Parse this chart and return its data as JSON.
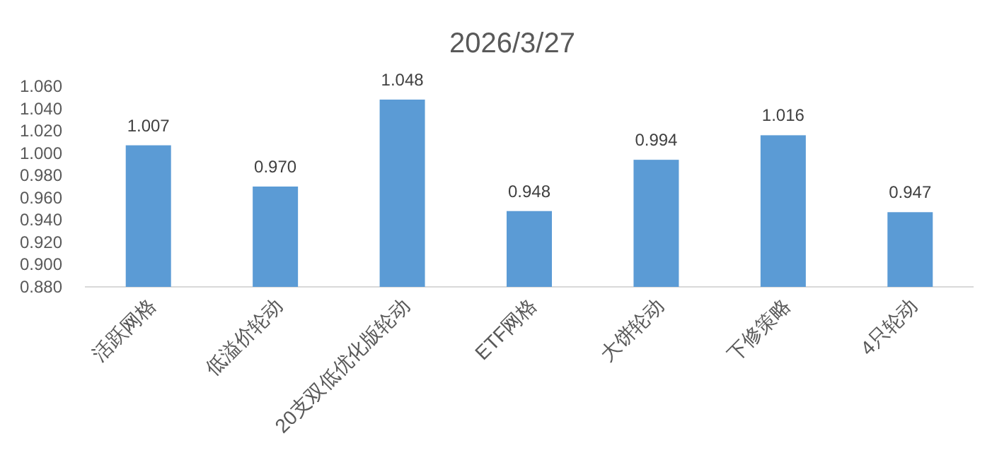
{
  "chart_data": {
    "type": "bar",
    "title": "2026/3/27",
    "categories": [
      "活跃网格",
      "低溢价轮动",
      "20支双低优化版轮动",
      "ETF网格",
      "大饼轮动",
      "下修策略",
      "4只轮动"
    ],
    "values": [
      1.007,
      0.97,
      1.048,
      0.948,
      0.994,
      1.016,
      0.947
    ],
    "value_labels": [
      "1.007",
      "0.970",
      "1.048",
      "0.948",
      "0.994",
      "1.016",
      "0.947"
    ],
    "color": "#5b9bd5",
    "ylim": [
      0.88,
      1.06
    ],
    "yticks": [
      {
        "value": 0.88,
        "label": "0.880"
      },
      {
        "value": 0.9,
        "label": "0.900"
      },
      {
        "value": 0.92,
        "label": "0.920"
      },
      {
        "value": 0.94,
        "label": "0.940"
      },
      {
        "value": 0.96,
        "label": "0.960"
      },
      {
        "value": 0.98,
        "label": "0.980"
      },
      {
        "value": 1.0,
        "label": "1.000"
      },
      {
        "value": 1.02,
        "label": "1.020"
      },
      {
        "value": 1.04,
        "label": "1.040"
      },
      {
        "value": 1.06,
        "label": "1.060"
      }
    ],
    "grid": false
  }
}
